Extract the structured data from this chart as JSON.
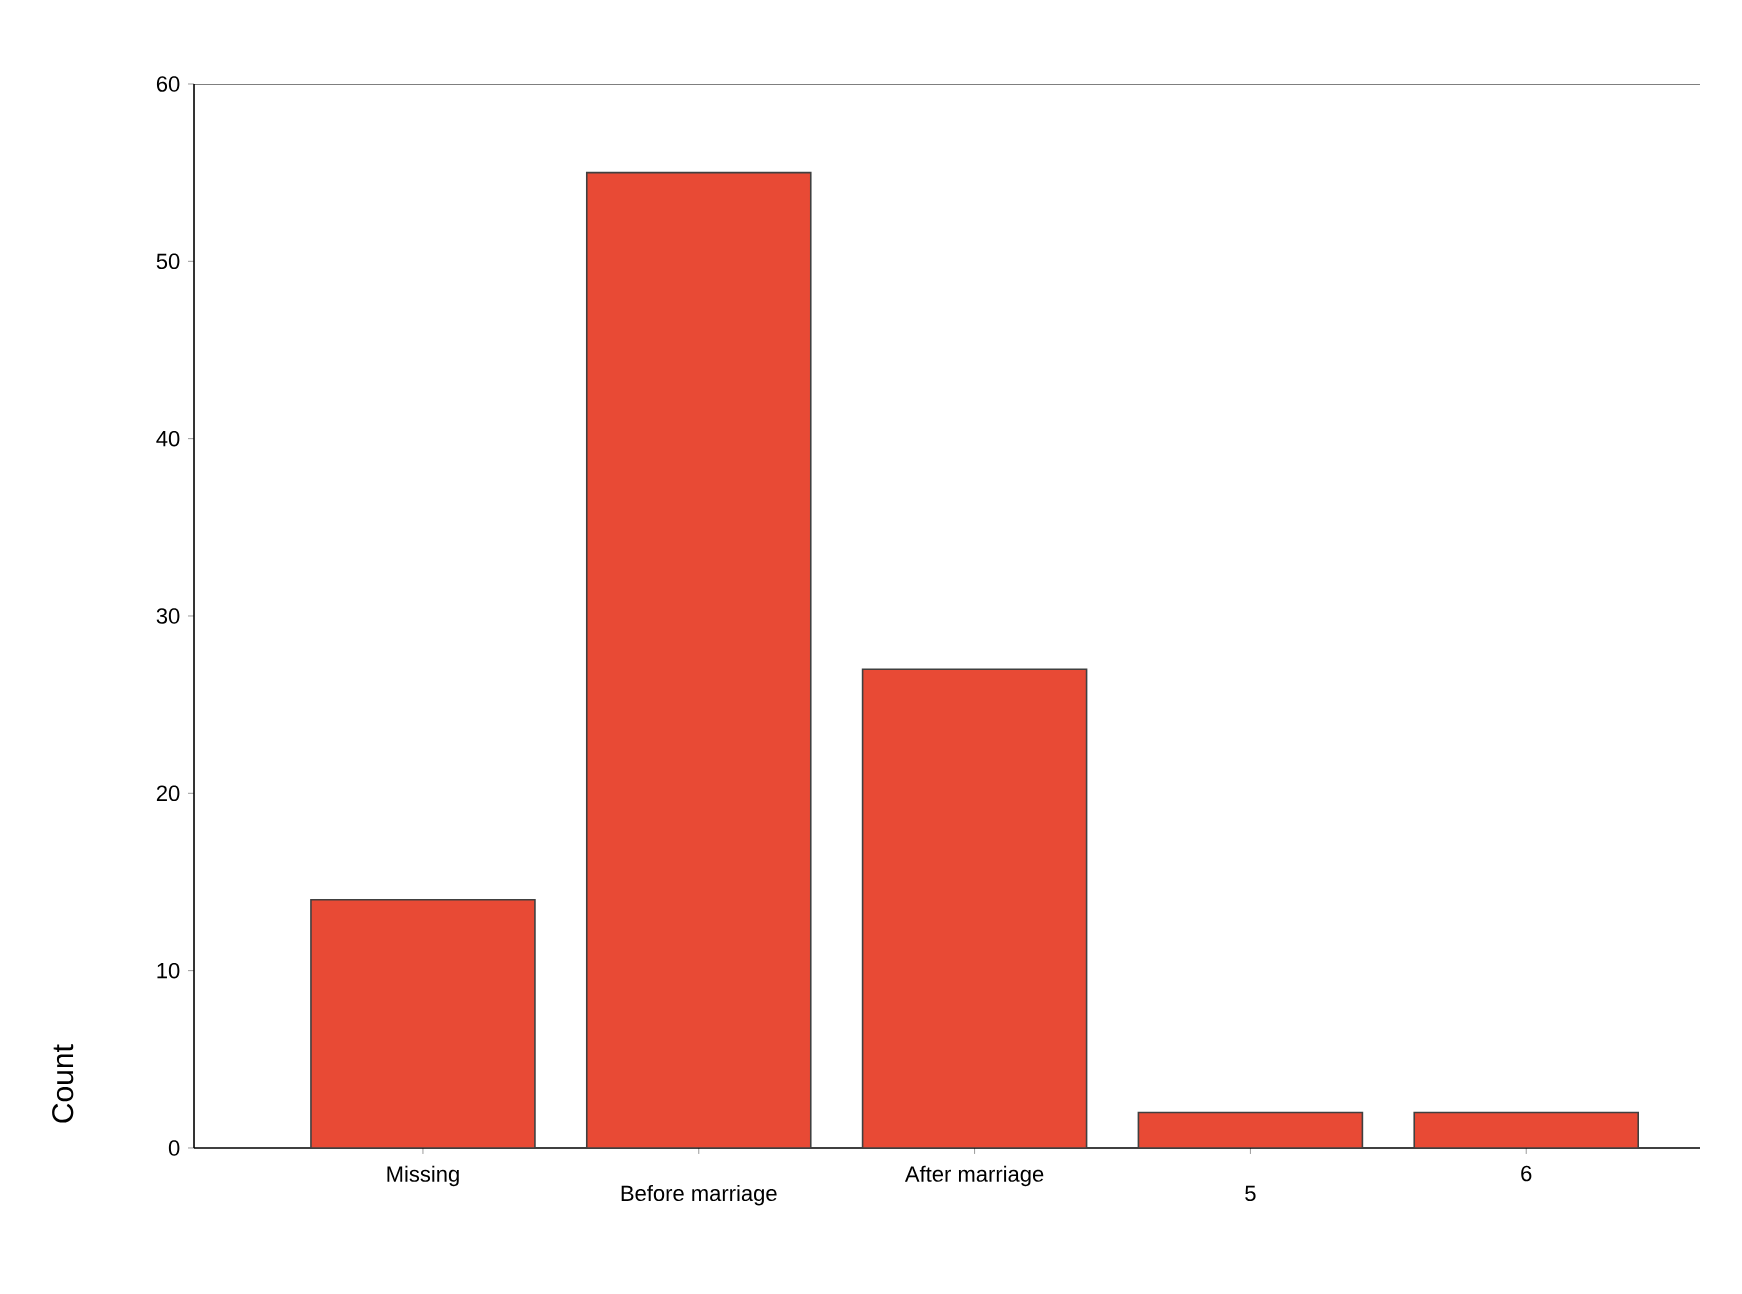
{
  "chart_data": {
    "type": "bar",
    "ylabel": "Count",
    "categories": [
      "Missing",
      "Before marriage",
      "After marriage",
      "5",
      "6"
    ],
    "values": [
      14,
      55,
      27,
      2,
      2
    ],
    "color": "#e84a35",
    "ylim": [
      0,
      60
    ],
    "yticks": [
      0,
      10,
      20,
      30,
      40,
      50,
      60
    ]
  }
}
